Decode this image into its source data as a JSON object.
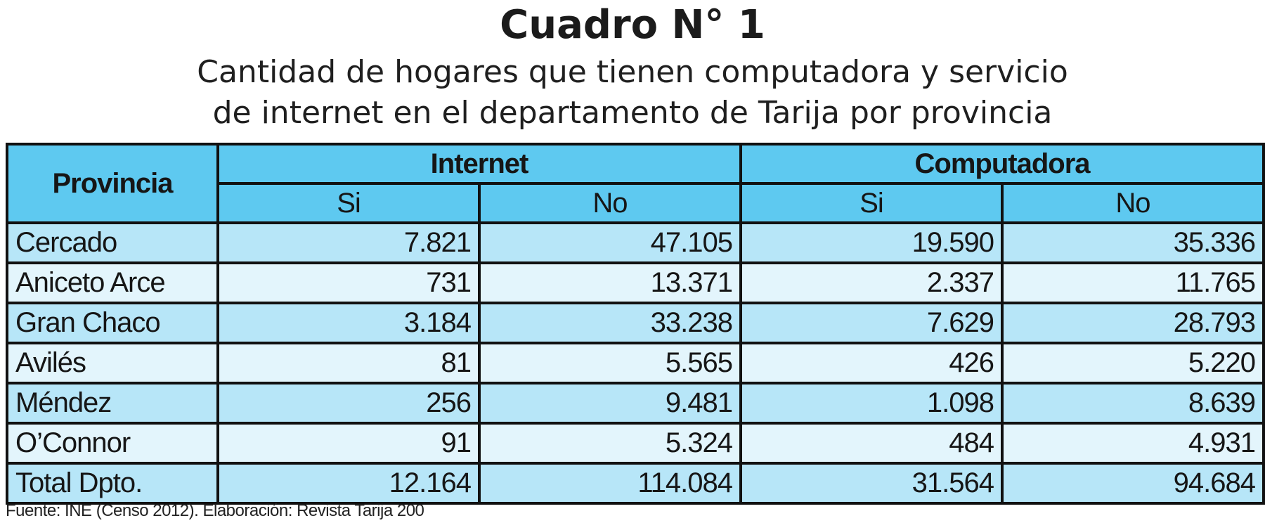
{
  "title": "Cuadro N° 1",
  "subtitle_line1": "Cantidad de hogares que tienen computadora y servicio",
  "subtitle_line2": "de internet en el departamento de Tarija por provincia",
  "table": {
    "col_provincia": "Provincia",
    "group_internet": "Internet",
    "group_computadora": "Computadora",
    "si": "Si",
    "no": "No",
    "rows": [
      {
        "provincia": "Cercado",
        "internet_si": "7.821",
        "internet_no": "47.105",
        "comp_si": "19.590",
        "comp_no": "35.336"
      },
      {
        "provincia": "Aniceto Arce",
        "internet_si": "731",
        "internet_no": "13.371",
        "comp_si": "2.337",
        "comp_no": "11.765"
      },
      {
        "provincia": "Gran Chaco",
        "internet_si": "3.184",
        "internet_no": "33.238",
        "comp_si": "7.629",
        "comp_no": "28.793"
      },
      {
        "provincia": "Avilés",
        "internet_si": "81",
        "internet_no": "5.565",
        "comp_si": "426",
        "comp_no": "5.220"
      },
      {
        "provincia": "Méndez",
        "internet_si": "256",
        "internet_no": "9.481",
        "comp_si": "1.098",
        "comp_no": "8.639"
      },
      {
        "provincia": "O’Connor",
        "internet_si": "91",
        "internet_no": "5.324",
        "comp_si": "484",
        "comp_no": "4.931"
      },
      {
        "provincia": "Total Dpto.",
        "internet_si": "12.164",
        "internet_no": "114.084",
        "comp_si": "31.564",
        "comp_no": "94.684"
      }
    ]
  },
  "source": "Fuente: INE (Censo 2012). Elaboración: Revista Tarija 200",
  "colors": {
    "header_bg": "#5ec9f0",
    "row_dark": "#b7e6f8",
    "row_light": "#e3f5fc",
    "border": "#111111"
  }
}
